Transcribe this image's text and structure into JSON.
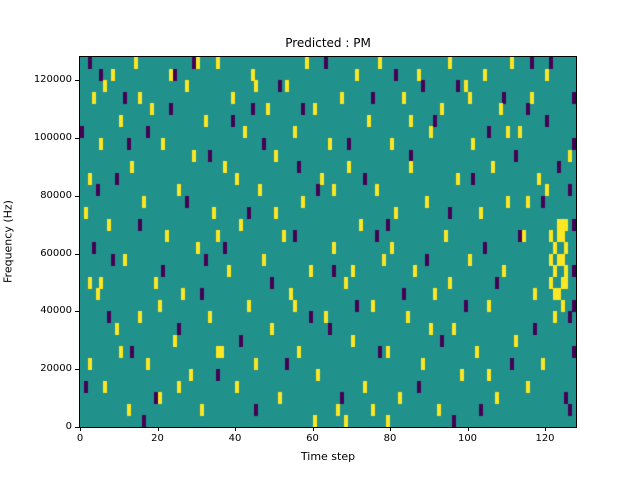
{
  "figure": {
    "title": "Predicted : PM"
  },
  "chart_data": {
    "type": "heatmap",
    "title": "Predicted : PM",
    "xlabel": "Time step",
    "ylabel": "Frequency (Hz)",
    "xlim": [
      0,
      128
    ],
    "ylim": [
      0,
      128000
    ],
    "x_bins": 128,
    "y_bins": 32,
    "y_bin_size_hz": 4000,
    "xticks": [
      0,
      20,
      40,
      60,
      80,
      100,
      120
    ],
    "yticks": [
      0,
      20000,
      40000,
      60000,
      80000,
      100000,
      120000
    ],
    "grid": false,
    "legend": "none",
    "colors": {
      "background": "#21918c",
      "high": "#fde725",
      "low": "#440154"
    },
    "cells": {
      "note": "Sparse cells over teal background; [time_step, frequency_bin] with bin height 4000 Hz; 'yellow' = high value, 'purple' = low value. Dense yellow cluster near t=121-125, bins 10-17; purple column at right edge t=126-127.",
      "yellow": [
        [
          2,
          5
        ],
        [
          2,
          12
        ],
        [
          2,
          21
        ],
        [
          3,
          28
        ],
        [
          4,
          11
        ],
        [
          5,
          12
        ],
        [
          5,
          24
        ],
        [
          6,
          3
        ],
        [
          6,
          29
        ],
        [
          1,
          18
        ],
        [
          7,
          17
        ],
        [
          8,
          30
        ],
        [
          9,
          8
        ],
        [
          10,
          6
        ],
        [
          10,
          26
        ],
        [
          11,
          14
        ],
        [
          12,
          1
        ],
        [
          13,
          22
        ],
        [
          14,
          31
        ],
        [
          15,
          9
        ],
        [
          15,
          28
        ],
        [
          16,
          19
        ],
        [
          17,
          5
        ],
        [
          18,
          27
        ],
        [
          19,
          12
        ],
        [
          20,
          2
        ],
        [
          20,
          10
        ],
        [
          21,
          24
        ],
        [
          22,
          16
        ],
        [
          23,
          30
        ],
        [
          24,
          7
        ],
        [
          25,
          3
        ],
        [
          25,
          20
        ],
        [
          26,
          11
        ],
        [
          27,
          29
        ],
        [
          28,
          4
        ],
        [
          29,
          23
        ],
        [
          30,
          15
        ],
        [
          30,
          31
        ],
        [
          31,
          1
        ],
        [
          32,
          26
        ],
        [
          33,
          9
        ],
        [
          34,
          18
        ],
        [
          35,
          6
        ],
        [
          35,
          16
        ],
        [
          35,
          31
        ],
        [
          36,
          6
        ],
        [
          37,
          22
        ],
        [
          38,
          13
        ],
        [
          39,
          28
        ],
        [
          40,
          3
        ],
        [
          40,
          21
        ],
        [
          41,
          17
        ],
        [
          42,
          25
        ],
        [
          43,
          10
        ],
        [
          44,
          30
        ],
        [
          45,
          5
        ],
        [
          45,
          29
        ],
        [
          46,
          20
        ],
        [
          47,
          14
        ],
        [
          48,
          27
        ],
        [
          49,
          8
        ],
        [
          50,
          18
        ],
        [
          50,
          23
        ],
        [
          51,
          2
        ],
        [
          52,
          16
        ],
        [
          53,
          29
        ],
        [
          54,
          11
        ],
        [
          55,
          10
        ],
        [
          55,
          25
        ],
        [
          56,
          6
        ],
        [
          57,
          19
        ],
        [
          58,
          31
        ],
        [
          59,
          13
        ],
        [
          60,
          0
        ],
        [
          60,
          27
        ],
        [
          61,
          4
        ],
        [
          62,
          21
        ],
        [
          63,
          9
        ],
        [
          64,
          24
        ],
        [
          65,
          15
        ],
        [
          65,
          20
        ],
        [
          66,
          1
        ],
        [
          67,
          28
        ],
        [
          68,
          0
        ],
        [
          68,
          12
        ],
        [
          69,
          22
        ],
        [
          70,
          7
        ],
        [
          70,
          13
        ],
        [
          71,
          30
        ],
        [
          72,
          17
        ],
        [
          73,
          3
        ],
        [
          74,
          26
        ],
        [
          75,
          1
        ],
        [
          75,
          10
        ],
        [
          76,
          20
        ],
        [
          77,
          31
        ],
        [
          78,
          14
        ],
        [
          79,
          0
        ],
        [
          79,
          6
        ],
        [
          80,
          15
        ],
        [
          80,
          24
        ],
        [
          81,
          18
        ],
        [
          82,
          2
        ],
        [
          83,
          28
        ],
        [
          84,
          9
        ],
        [
          85,
          22
        ],
        [
          85,
          26
        ],
        [
          86,
          13
        ],
        [
          87,
          30
        ],
        [
          88,
          5
        ],
        [
          89,
          19
        ],
        [
          90,
          8
        ],
        [
          90,
          25
        ],
        [
          91,
          11
        ],
        [
          92,
          1
        ],
        [
          93,
          27
        ],
        [
          94,
          16
        ],
        [
          95,
          12
        ],
        [
          95,
          31
        ],
        [
          96,
          8
        ],
        [
          97,
          21
        ],
        [
          98,
          4
        ],
        [
          99,
          29
        ],
        [
          100,
          14
        ],
        [
          100,
          28
        ],
        [
          101,
          24
        ],
        [
          102,
          6
        ],
        [
          103,
          18
        ],
        [
          104,
          30
        ],
        [
          105,
          4
        ],
        [
          105,
          10
        ],
        [
          106,
          22
        ],
        [
          107,
          2
        ],
        [
          108,
          27
        ],
        [
          109,
          13
        ],
        [
          110,
          19
        ],
        [
          110,
          25
        ],
        [
          111,
          31
        ],
        [
          112,
          7
        ],
        [
          113,
          25
        ],
        [
          114,
          16
        ],
        [
          115,
          3
        ],
        [
          115,
          19
        ],
        [
          116,
          28
        ],
        [
          117,
          11
        ],
        [
          118,
          21
        ],
        [
          119,
          5
        ],
        [
          120,
          20
        ],
        [
          120,
          30
        ],
        [
          121,
          12
        ],
        [
          121,
          14
        ],
        [
          121,
          16
        ],
        [
          122,
          9
        ],
        [
          122,
          11
        ],
        [
          122,
          13
        ],
        [
          122,
          15
        ],
        [
          123,
          11
        ],
        [
          123,
          14
        ],
        [
          123,
          16
        ],
        [
          123,
          17
        ],
        [
          124,
          10
        ],
        [
          124,
          12
        ],
        [
          124,
          14
        ],
        [
          124,
          16
        ],
        [
          124,
          17
        ],
        [
          125,
          12
        ],
        [
          125,
          13
        ],
        [
          125,
          15
        ],
        [
          125,
          17
        ],
        [
          126,
          23
        ]
      ],
      "purple": [
        [
          0,
          25
        ],
        [
          1,
          3
        ],
        [
          2,
          31
        ],
        [
          3,
          15
        ],
        [
          4,
          20
        ],
        [
          5,
          30
        ],
        [
          7,
          9
        ],
        [
          8,
          14
        ],
        [
          9,
          21
        ],
        [
          11,
          28
        ],
        [
          12,
          24
        ],
        [
          13,
          6
        ],
        [
          15,
          17
        ],
        [
          16,
          0
        ],
        [
          17,
          25
        ],
        [
          19,
          2
        ],
        [
          21,
          13
        ],
        [
          23,
          27
        ],
        [
          24,
          30
        ],
        [
          25,
          8
        ],
        [
          27,
          19
        ],
        [
          29,
          31
        ],
        [
          31,
          11
        ],
        [
          32,
          14
        ],
        [
          33,
          23
        ],
        [
          35,
          4
        ],
        [
          37,
          15
        ],
        [
          39,
          26
        ],
        [
          41,
          7
        ],
        [
          43,
          18
        ],
        [
          44,
          27
        ],
        [
          45,
          1
        ],
        [
          47,
          24
        ],
        [
          49,
          12
        ],
        [
          51,
          29
        ],
        [
          53,
          5
        ],
        [
          55,
          16
        ],
        [
          56,
          22
        ],
        [
          57,
          27
        ],
        [
          59,
          9
        ],
        [
          61,
          20
        ],
        [
          63,
          31
        ],
        [
          64,
          8
        ],
        [
          65,
          13
        ],
        [
          67,
          2
        ],
        [
          69,
          24
        ],
        [
          71,
          10
        ],
        [
          73,
          21
        ],
        [
          75,
          28
        ],
        [
          76,
          16
        ],
        [
          77,
          6
        ],
        [
          79,
          17
        ],
        [
          81,
          30
        ],
        [
          83,
          11
        ],
        [
          85,
          23
        ],
        [
          87,
          3
        ],
        [
          88,
          29
        ],
        [
          89,
          14
        ],
        [
          91,
          26
        ],
        [
          93,
          7
        ],
        [
          95,
          18
        ],
        [
          96,
          0
        ],
        [
          97,
          29
        ],
        [
          99,
          10
        ],
        [
          101,
          21
        ],
        [
          103,
          1
        ],
        [
          104,
          15
        ],
        [
          105,
          25
        ],
        [
          107,
          12
        ],
        [
          109,
          28
        ],
        [
          111,
          5
        ],
        [
          112,
          23
        ],
        [
          113,
          16
        ],
        [
          115,
          27
        ],
        [
          116,
          31
        ],
        [
          117,
          8
        ],
        [
          119,
          19
        ],
        [
          120,
          26
        ],
        [
          121,
          31
        ],
        [
          123,
          22
        ],
        [
          125,
          2
        ],
        [
          126,
          1
        ],
        [
          126,
          9
        ],
        [
          126,
          20
        ],
        [
          127,
          6
        ],
        [
          127,
          10
        ],
        [
          127,
          13
        ],
        [
          127,
          17
        ],
        [
          127,
          24
        ],
        [
          127,
          28
        ]
      ]
    }
  }
}
